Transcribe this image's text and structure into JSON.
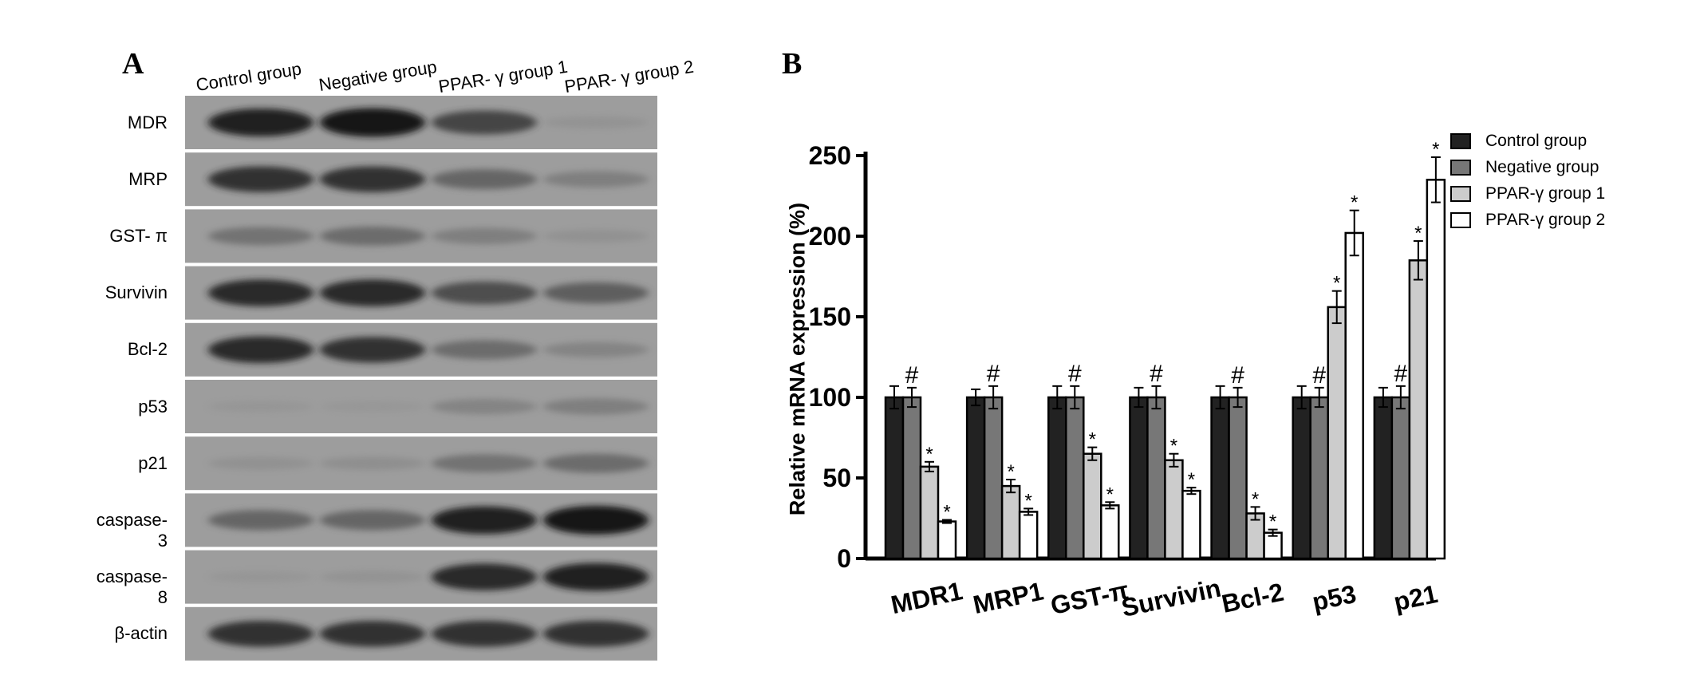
{
  "panel_a": {
    "letter": "A",
    "columns": [
      "Control group",
      "Negative group",
      "PPAR- γ group 1",
      "PPAR- γ group 2"
    ],
    "rows": [
      "MDR",
      "MRP",
      "GST- π",
      "Survivin",
      "Bcl-2",
      "p53",
      "p21",
      "caspase-3",
      "caspase-8",
      "β-actin"
    ],
    "band_intensity": [
      [
        0.95,
        1.0,
        0.75,
        0.12
      ],
      [
        0.85,
        0.85,
        0.55,
        0.35
      ],
      [
        0.45,
        0.5,
        0.35,
        0.15
      ],
      [
        0.9,
        0.9,
        0.7,
        0.6
      ],
      [
        0.9,
        0.85,
        0.5,
        0.3
      ],
      [
        0.08,
        0.06,
        0.3,
        0.35
      ],
      [
        0.15,
        0.18,
        0.45,
        0.5
      ],
      [
        0.55,
        0.55,
        0.95,
        1.0
      ],
      [
        0.08,
        0.12,
        0.9,
        0.95
      ],
      [
        0.85,
        0.85,
        0.85,
        0.85
      ]
    ]
  },
  "chart_data": {
    "type": "bar",
    "panel_letter": "B",
    "ylabel": "Relative mRNA expression (%)",
    "ylim": [
      0,
      250
    ],
    "yticks": [
      "0",
      "50",
      "100",
      "150",
      "200",
      "250"
    ],
    "categories": [
      "MDR1",
      "MRP1",
      "GST-π",
      "Survivin",
      "Bcl-2",
      "p53",
      "p21"
    ],
    "series": [
      {
        "name": "Control group",
        "color": "#222222",
        "values": [
          100,
          100,
          100,
          100,
          100,
          100,
          100
        ],
        "errors": [
          7,
          5,
          7,
          6,
          7,
          7,
          6
        ]
      },
      {
        "name": "Negative group",
        "color": "#777777",
        "values": [
          100,
          100,
          100,
          100,
          100,
          100,
          100
        ],
        "errors": [
          6,
          7,
          7,
          7,
          6,
          6,
          7
        ]
      },
      {
        "name": "PPAR-γ  group 1",
        "color": "#cccccc",
        "values": [
          57,
          45,
          65,
          61,
          28,
          156,
          185
        ],
        "errors": [
          3,
          4,
          4,
          4,
          4,
          10,
          12
        ]
      },
      {
        "name": "PPAR-γ  group 2",
        "color": "#ffffff",
        "values": [
          23,
          29,
          33,
          42,
          16,
          202,
          235
        ],
        "errors": [
          1,
          2,
          2,
          2,
          2,
          14,
          14
        ]
      }
    ],
    "annotations": [
      {
        "category": "MDR1",
        "series": 1,
        "text": "#"
      },
      {
        "category": "MRP1",
        "series": 1,
        "text": "#"
      },
      {
        "category": "GST-π",
        "series": 1,
        "text": "#"
      },
      {
        "category": "Survivin",
        "series": 1,
        "text": "#"
      },
      {
        "category": "Bcl-2",
        "series": 1,
        "text": "#"
      },
      {
        "category": "p53",
        "series": 1,
        "text": "#"
      },
      {
        "category": "p21",
        "series": 1,
        "text": "#"
      },
      {
        "category": "MDR1",
        "series": 2,
        "text": "*"
      },
      {
        "category": "MRP1",
        "series": 2,
        "text": "*"
      },
      {
        "category": "GST-π",
        "series": 2,
        "text": "*"
      },
      {
        "category": "Survivin",
        "series": 2,
        "text": "*"
      },
      {
        "category": "Bcl-2",
        "series": 2,
        "text": "*"
      },
      {
        "category": "p53",
        "series": 2,
        "text": "*"
      },
      {
        "category": "p21",
        "series": 2,
        "text": "*"
      },
      {
        "category": "MDR1",
        "series": 3,
        "text": "*"
      },
      {
        "category": "MRP1",
        "series": 3,
        "text": "*"
      },
      {
        "category": "GST-π",
        "series": 3,
        "text": "*"
      },
      {
        "category": "Survivin",
        "series": 3,
        "text": "*"
      },
      {
        "category": "Bcl-2",
        "series": 3,
        "text": "*"
      },
      {
        "category": "p53",
        "series": 3,
        "text": "*"
      },
      {
        "category": "p21",
        "series": 3,
        "text": "*"
      }
    ],
    "legend_position": "top-right",
    "grid": false
  }
}
